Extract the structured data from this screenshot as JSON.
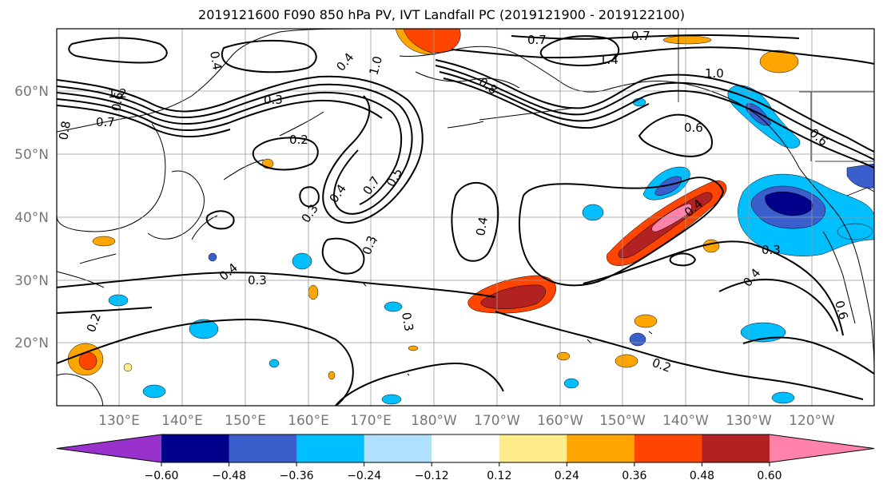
{
  "title": "2019121600 F090 850 hPa PV, IVT Landfall PC (2019121900 - 2019122100)",
  "lat_labels": [
    "60°N",
    "50°N",
    "40°N",
    "30°N",
    "20°N"
  ],
  "lon_labels": [
    "130°E",
    "140°E",
    "150°E",
    "160°E",
    "170°E",
    "180°W",
    "170°W",
    "160°W",
    "150°W",
    "140°W",
    "130°W",
    "120°W"
  ],
  "colorbar": {
    "colors": [
      "#9932cc",
      "#00008b",
      "#3a5fcd",
      "#00bfff",
      "#b0e2ff",
      "#ffffff",
      "#ffec8b",
      "#ffa500",
      "#ff4500",
      "#b22222",
      "#ff82ab"
    ],
    "tick_labels": [
      "−0.60",
      "−0.48",
      "−0.36",
      "−0.24",
      "−0.12",
      "0.12",
      "0.24",
      "0.36",
      "0.48",
      "0.60"
    ]
  },
  "contour_labels": [
    "1.2",
    "0.7",
    "0.8",
    "0.6",
    "0.7",
    "1.4",
    "1.0",
    "0.7",
    "0.8",
    "0.6",
    "1.0",
    "0.7",
    "0.5",
    "0.4",
    "0.3",
    "0.2",
    "0.4",
    "0.3",
    "0.3",
    "0.4",
    "0.4",
    "0.6",
    "0.3",
    "0.2",
    "0.3",
    "0.4",
    "0.2",
    "0.4",
    "0.3",
    "0.4",
    "0.6"
  ]
}
